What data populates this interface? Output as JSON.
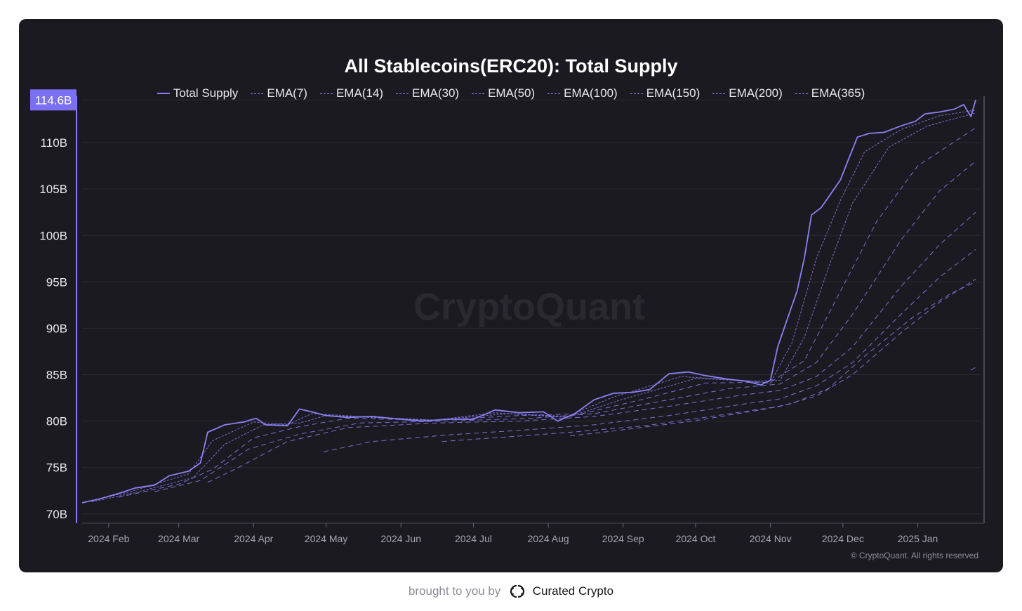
{
  "chart_data": {
    "type": "line",
    "title": "All Stablecoins(ERC20): Total Supply",
    "y_ticks": [
      "70B",
      "75B",
      "80B",
      "85B",
      "90B",
      "95B",
      "100B",
      "105B",
      "110B"
    ],
    "ylim": [
      69,
      115
    ],
    "current_value_label": "114.6B",
    "current_value": 114.6,
    "x_ticks": [
      {
        "label": "2024 Feb",
        "date": "2024-02-01"
      },
      {
        "label": "2024 Mar",
        "date": "2024-03-01"
      },
      {
        "label": "2024 Apr",
        "date": "2024-04-01"
      },
      {
        "label": "2024 May",
        "date": "2024-05-01"
      },
      {
        "label": "2024 Jun",
        "date": "2024-06-01"
      },
      {
        "label": "2024 Jul",
        "date": "2024-07-01"
      },
      {
        "label": "2024 Aug",
        "date": "2024-08-01"
      },
      {
        "label": "2024 Sep",
        "date": "2024-09-01"
      },
      {
        "label": "2024 Oct",
        "date": "2024-10-01"
      },
      {
        "label": "2024 Nov",
        "date": "2024-11-01"
      },
      {
        "label": "2024 Dec",
        "date": "2024-12-01"
      },
      {
        "label": "2025 Jan",
        "date": "2025-01-01"
      }
    ],
    "xlim": [
      "2024-01-21",
      "2025-01-27"
    ],
    "series": [
      {
        "name": "Total Supply",
        "style": "solid",
        "points": [
          [
            "2024-01-21",
            71.2
          ],
          [
            "2024-01-28",
            71.6
          ],
          [
            "2024-02-05",
            72.2
          ],
          [
            "2024-02-12",
            72.8
          ],
          [
            "2024-02-20",
            73.1
          ],
          [
            "2024-02-26",
            74.1
          ],
          [
            "2024-03-05",
            74.6
          ],
          [
            "2024-03-10",
            75.5
          ],
          [
            "2024-03-13",
            78.8
          ],
          [
            "2024-03-20",
            79.6
          ],
          [
            "2024-03-28",
            79.9
          ],
          [
            "2024-04-02",
            80.3
          ],
          [
            "2024-04-06",
            79.6
          ],
          [
            "2024-04-15",
            79.5
          ],
          [
            "2024-04-20",
            81.3
          ],
          [
            "2024-04-25",
            81.0
          ],
          [
            "2024-05-01",
            80.6
          ],
          [
            "2024-05-10",
            80.4
          ],
          [
            "2024-05-20",
            80.5
          ],
          [
            "2024-06-01",
            80.2
          ],
          [
            "2024-06-10",
            80.0
          ],
          [
            "2024-06-20",
            80.2
          ],
          [
            "2024-07-01",
            80.2
          ],
          [
            "2024-07-10",
            81.2
          ],
          [
            "2024-07-20",
            80.9
          ],
          [
            "2024-07-30",
            81.0
          ],
          [
            "2024-08-05",
            80.0
          ],
          [
            "2024-08-12",
            80.8
          ],
          [
            "2024-08-20",
            82.3
          ],
          [
            "2024-08-28",
            83.0
          ],
          [
            "2024-09-05",
            83.1
          ],
          [
            "2024-09-12",
            83.4
          ],
          [
            "2024-09-20",
            85.1
          ],
          [
            "2024-09-28",
            85.3
          ],
          [
            "2024-10-05",
            84.9
          ],
          [
            "2024-10-15",
            84.5
          ],
          [
            "2024-10-22",
            84.3
          ],
          [
            "2024-10-28",
            83.9
          ],
          [
            "2024-11-01",
            84.4
          ],
          [
            "2024-11-04",
            88.0
          ],
          [
            "2024-11-08",
            91.0
          ],
          [
            "2024-11-12",
            94.0
          ],
          [
            "2024-11-15",
            97.5
          ],
          [
            "2024-11-18",
            102.2
          ],
          [
            "2024-11-22",
            103.0
          ],
          [
            "2024-11-26",
            104.5
          ],
          [
            "2024-11-30",
            106.0
          ],
          [
            "2024-12-03",
            108.0
          ],
          [
            "2024-12-07",
            110.6
          ],
          [
            "2024-12-12",
            111.0
          ],
          [
            "2024-12-18",
            111.1
          ],
          [
            "2024-12-25",
            111.8
          ],
          [
            "2024-12-31",
            112.3
          ],
          [
            "2025-01-04",
            113.1
          ],
          [
            "2025-01-10",
            113.3
          ],
          [
            "2025-01-16",
            113.6
          ],
          [
            "2025-01-20",
            114.1
          ],
          [
            "2025-01-23",
            112.8
          ],
          [
            "2025-01-25",
            114.6
          ]
        ]
      },
      {
        "name": "EMA(7)",
        "style": "dashed",
        "points": [
          [
            "2024-01-21",
            71.2
          ],
          [
            "2024-02-10",
            72.4
          ],
          [
            "2024-03-05",
            74.3
          ],
          [
            "2024-03-15",
            77.9
          ],
          [
            "2024-04-01",
            79.9
          ],
          [
            "2024-04-15",
            79.6
          ],
          [
            "2024-04-25",
            80.8
          ],
          [
            "2024-05-15",
            80.5
          ],
          [
            "2024-06-15",
            80.1
          ],
          [
            "2024-07-10",
            80.9
          ],
          [
            "2024-08-08",
            80.4
          ],
          [
            "2024-08-28",
            82.6
          ],
          [
            "2024-09-25",
            84.8
          ],
          [
            "2024-10-20",
            84.4
          ],
          [
            "2024-11-01",
            84.1
          ],
          [
            "2024-11-10",
            88.5
          ],
          [
            "2024-11-20",
            97.5
          ],
          [
            "2024-11-30",
            103.8
          ],
          [
            "2024-12-10",
            109.0
          ],
          [
            "2024-12-25",
            111.4
          ],
          [
            "2025-01-10",
            112.9
          ],
          [
            "2025-01-25",
            113.5
          ]
        ]
      },
      {
        "name": "EMA(14)",
        "style": "dashed",
        "points": [
          [
            "2024-01-25",
            71.3
          ],
          [
            "2024-02-12",
            72.3
          ],
          [
            "2024-03-07",
            73.9
          ],
          [
            "2024-03-20",
            77.5
          ],
          [
            "2024-04-05",
            79.6
          ],
          [
            "2024-04-20",
            79.8
          ],
          [
            "2024-05-01",
            80.6
          ],
          [
            "2024-06-15",
            80.1
          ],
          [
            "2024-07-15",
            80.8
          ],
          [
            "2024-08-10",
            80.5
          ],
          [
            "2024-08-30",
            82.2
          ],
          [
            "2024-10-01",
            84.6
          ],
          [
            "2024-10-25",
            84.3
          ],
          [
            "2024-11-05",
            84.4
          ],
          [
            "2024-11-15",
            89.0
          ],
          [
            "2024-11-25",
            96.5
          ],
          [
            "2024-12-05",
            103.5
          ],
          [
            "2024-12-20",
            109.5
          ],
          [
            "2025-01-05",
            111.8
          ],
          [
            "2025-01-25",
            113.2
          ]
        ]
      },
      {
        "name": "EMA(30)",
        "style": "dashed",
        "points": [
          [
            "2024-02-05",
            71.8
          ],
          [
            "2024-03-01",
            73.2
          ],
          [
            "2024-03-15",
            74.8
          ],
          [
            "2024-04-01",
            78.2
          ],
          [
            "2024-04-20",
            79.4
          ],
          [
            "2024-05-10",
            80.3
          ],
          [
            "2024-06-15",
            80.1
          ],
          [
            "2024-07-20",
            80.6
          ],
          [
            "2024-08-15",
            80.8
          ],
          [
            "2024-09-10",
            82.4
          ],
          [
            "2024-10-05",
            84.1
          ],
          [
            "2024-11-01",
            84.2
          ],
          [
            "2024-11-15",
            86.5
          ],
          [
            "2024-11-30",
            94.0
          ],
          [
            "2024-12-15",
            101.5
          ],
          [
            "2025-01-01",
            107.5
          ],
          [
            "2025-01-25",
            111.6
          ]
        ]
      },
      {
        "name": "EMA(50)",
        "style": "dashed",
        "points": [
          [
            "2024-02-20",
            72.4
          ],
          [
            "2024-03-10",
            73.6
          ],
          [
            "2024-03-30",
            77.0
          ],
          [
            "2024-04-20",
            78.6
          ],
          [
            "2024-05-15",
            79.8
          ],
          [
            "2024-06-20",
            80.0
          ],
          [
            "2024-07-25",
            80.3
          ],
          [
            "2024-08-20",
            80.8
          ],
          [
            "2024-09-20",
            82.3
          ],
          [
            "2024-10-15",
            83.5
          ],
          [
            "2024-11-05",
            84.0
          ],
          [
            "2024-11-20",
            86.3
          ],
          [
            "2024-12-05",
            91.5
          ],
          [
            "2024-12-25",
            99.5
          ],
          [
            "2025-01-10",
            104.8
          ],
          [
            "2025-01-25",
            108.0
          ]
        ]
      },
      {
        "name": "EMA(100)",
        "style": "dashed",
        "points": [
          [
            "2024-03-13",
            73.4
          ],
          [
            "2024-03-25",
            74.9
          ],
          [
            "2024-04-15",
            77.8
          ],
          [
            "2024-05-10",
            79.3
          ],
          [
            "2024-06-15",
            79.8
          ],
          [
            "2024-07-20",
            80.0
          ],
          [
            "2024-08-20",
            80.5
          ],
          [
            "2024-09-20",
            81.6
          ],
          [
            "2024-10-20",
            82.8
          ],
          [
            "2024-11-05",
            83.3
          ],
          [
            "2024-11-20",
            84.8
          ],
          [
            "2024-12-05",
            88.0
          ],
          [
            "2024-12-25",
            94.5
          ],
          [
            "2025-01-10",
            99.0
          ],
          [
            "2025-01-25",
            102.5
          ]
        ]
      },
      {
        "name": "EMA(150)",
        "style": "dashed",
        "points": [
          [
            "2024-04-30",
            76.7
          ],
          [
            "2024-05-20",
            77.8
          ],
          [
            "2024-06-20",
            78.5
          ],
          [
            "2024-07-20",
            79.0
          ],
          [
            "2024-08-20",
            79.6
          ],
          [
            "2024-09-20",
            80.6
          ],
          [
            "2024-10-20",
            81.8
          ],
          [
            "2024-11-05",
            82.4
          ],
          [
            "2024-11-20",
            83.8
          ],
          [
            "2024-12-05",
            86.3
          ],
          [
            "2024-12-25",
            91.5
          ],
          [
            "2025-01-10",
            95.5
          ],
          [
            "2025-01-25",
            98.5
          ]
        ]
      },
      {
        "name": "EMA(200)",
        "style": "dashed",
        "points": [
          [
            "2024-06-18",
            77.8
          ],
          [
            "2024-07-15",
            78.3
          ],
          [
            "2024-08-10",
            78.8
          ],
          [
            "2024-09-10",
            79.5
          ],
          [
            "2024-10-10",
            80.6
          ],
          [
            "2024-11-05",
            81.6
          ],
          [
            "2024-11-20",
            82.7
          ],
          [
            "2024-12-05",
            85.0
          ],
          [
            "2024-12-25",
            89.5
          ],
          [
            "2025-01-10",
            92.8
          ],
          [
            "2025-01-25",
            95.3
          ]
        ]
      },
      {
        "name": "EMA(150) tail",
        "legend_of": "EMA(150)",
        "style": "dashed",
        "points": [
          [
            "2024-08-10",
            78.4
          ],
          [
            "2024-08-30",
            79.0
          ],
          [
            "2024-09-30",
            80.0
          ],
          [
            "2024-10-30",
            81.3
          ],
          [
            "2024-11-10",
            81.9
          ],
          [
            "2024-11-25",
            83.5
          ],
          [
            "2024-12-10",
            87.0
          ],
          [
            "2024-12-30",
            91.2
          ],
          [
            "2025-01-15",
            93.8
          ],
          [
            "2025-01-25",
            95.0
          ]
        ]
      },
      {
        "name": "EMA(365)",
        "style": "dashed",
        "points": [
          [
            "2025-01-23",
            85.5
          ],
          [
            "2025-01-25",
            85.8
          ]
        ]
      }
    ],
    "colors": {
      "line": "#8a80f5",
      "background": "#1b1a20",
      "grid": "#2b2a32",
      "badge": "#7c70f2"
    },
    "watermark": "CryptoQuant",
    "copyright": "© CryptoQuant. All rights reserved"
  },
  "legend": [
    {
      "label": "Total Supply",
      "style": "solid"
    },
    {
      "label": "EMA(7)",
      "style": "dashed"
    },
    {
      "label": "EMA(14)",
      "style": "dashed"
    },
    {
      "label": "EMA(30)",
      "style": "dashed"
    },
    {
      "label": "EMA(50)",
      "style": "dashed"
    },
    {
      "label": "EMA(100)",
      "style": "dashed"
    },
    {
      "label": "EMA(150)",
      "style": "dashed"
    },
    {
      "label": "EMA(200)",
      "style": "dashed"
    },
    {
      "label": "EMA(365)",
      "style": "dashed"
    }
  ],
  "footer": {
    "prefix": "brought to you by",
    "brand": "Curated Crypto",
    "logo_icon": "cc-logo-icon"
  }
}
